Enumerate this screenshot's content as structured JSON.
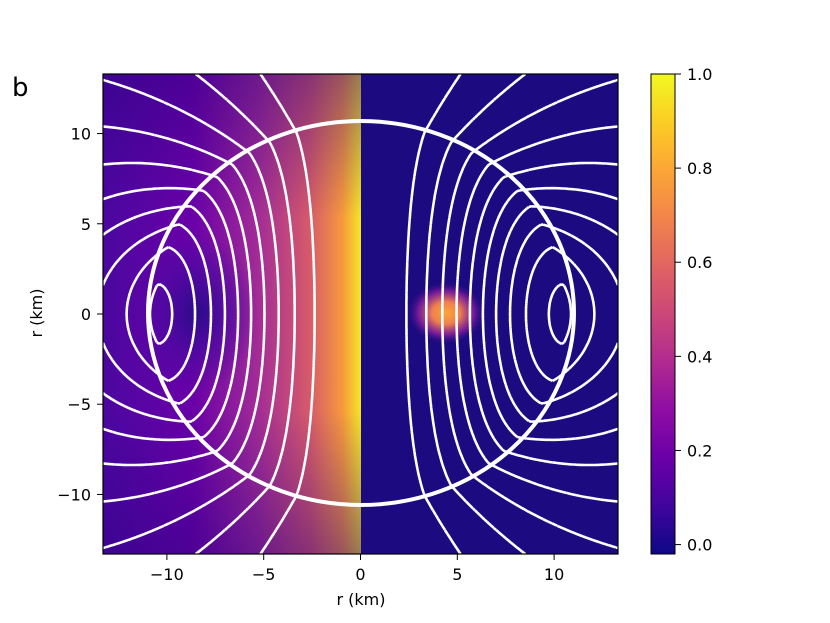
{
  "panel_label": "b",
  "chart_data": {
    "type": "heatmap",
    "title": "",
    "xlabel": "r (km)",
    "ylabel": "r (km)",
    "xlim": [
      -13.3,
      13.3
    ],
    "ylim": [
      -13.3,
      13.3
    ],
    "xticks": [
      -10,
      -5,
      0,
      5,
      10
    ],
    "xtick_labels": [
      "−10",
      "−5",
      "0",
      "5",
      "10"
    ],
    "yticks": [
      -10,
      -5,
      0,
      5,
      10
    ],
    "ytick_labels": [
      "−10",
      "−5",
      "0",
      "5",
      "10"
    ],
    "colormap": "plasma",
    "colorbar": {
      "range": [
        -0.02,
        1.0
      ],
      "ticks": [
        0.0,
        0.2,
        0.4,
        0.6,
        0.8,
        1.0
      ],
      "tick_labels": [
        "0.0",
        "0.2",
        "0.4",
        "0.6",
        "0.8",
        "1.0"
      ]
    },
    "star_radius": 10.6,
    "field_line_color": "#ffffff",
    "left_panel": {
      "description_values": {
        "max_at_axis": 1.0,
        "min_near_center": [
          -8.4,
          0
        ]
      }
    },
    "right_panel": {
      "hotspot_center": [
        4.6,
        0
      ],
      "hotspot_peak": 0.8
    },
    "field_line_levels": [
      0.1,
      0.2,
      0.3,
      0.4,
      0.5,
      0.6,
      0.7,
      0.8,
      0.9,
      1.0,
      1.1,
      1.2
    ]
  }
}
